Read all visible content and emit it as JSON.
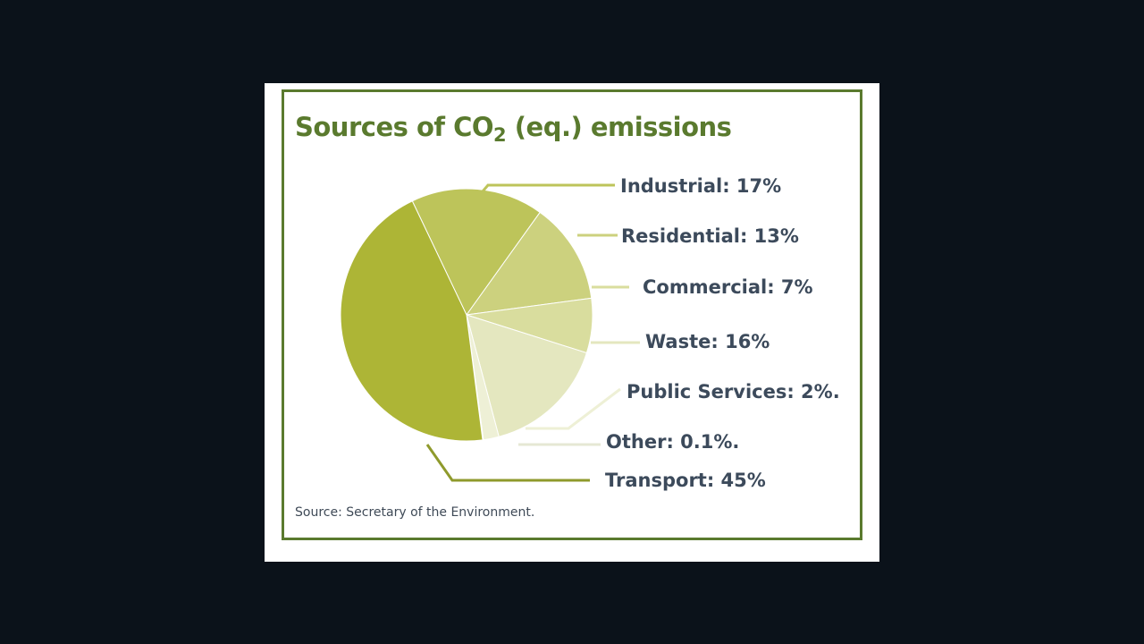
{
  "title": {
    "prefix": "Sources of CO",
    "subscript": "2",
    "suffix": " (eq.) emissions"
  },
  "source": "Source: Secretary of the Environment.",
  "chart_data": {
    "type": "pie",
    "slices": [
      {
        "name": "Industrial",
        "value": 17,
        "label": "Industrial: 17%",
        "color": "#bdc45a"
      },
      {
        "name": "Residential",
        "value": 13,
        "label": "Residential: 13%",
        "color": "#ccd17e"
      },
      {
        "name": "Commercial",
        "value": 7,
        "label": "Commercial: 7%",
        "color": "#d9dd9e"
      },
      {
        "name": "Waste",
        "value": 16,
        "label": "Waste: 16%",
        "color": "#e4e7bf"
      },
      {
        "name": "Public Services",
        "value": 2,
        "label": "Public Services: 2%.",
        "color": "#eef0d6"
      },
      {
        "name": "Other",
        "value": 0.1,
        "label": "Other: 0.1%.",
        "color": "#f3f4e6"
      },
      {
        "name": "Transport",
        "value": 45,
        "label": "Transport: 45%",
        "color": "#adb536"
      }
    ]
  }
}
